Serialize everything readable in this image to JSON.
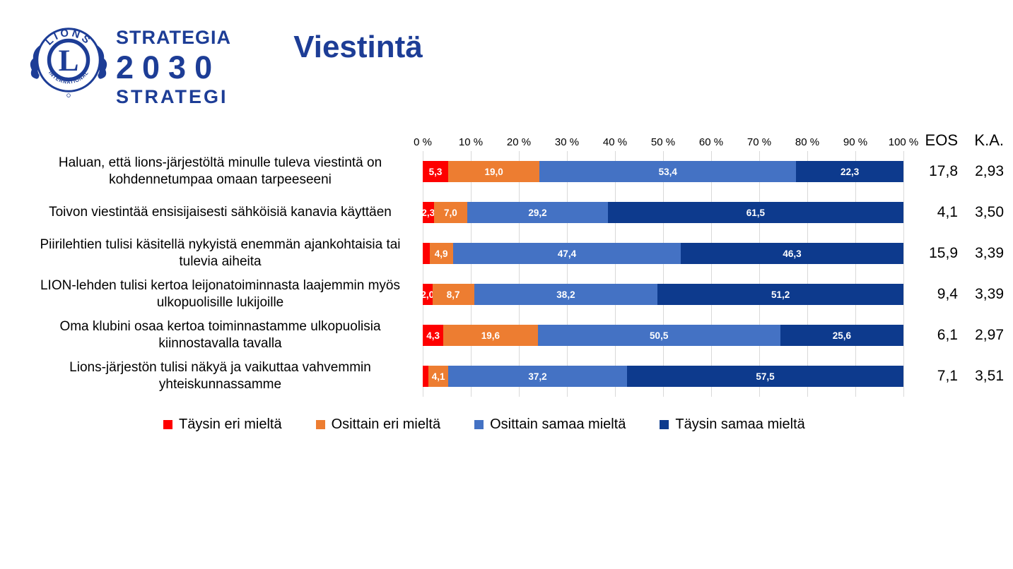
{
  "header": {
    "title": "Viestintä",
    "wordmark": {
      "line1": "STRATEGIA",
      "line2": "2030",
      "line3": "STRATEGI"
    },
    "logo": {
      "top_text": "LIONS",
      "bottom_text": "INTERNATIONAL",
      "center_letter": "L"
    },
    "brand_blue": "#1d3d96"
  },
  "chart_data": {
    "type": "stacked-bar-horizontal",
    "title": "Viestintä",
    "x_ticks": [
      "0 %",
      "10 %",
      "20 %",
      "30 %",
      "40 %",
      "50 %",
      "60 %",
      "70 %",
      "80 %",
      "90 %",
      "100 %"
    ],
    "xlim": [
      0,
      100
    ],
    "grid": true,
    "legend_position": "bottom",
    "extra_columns": [
      "EOS",
      "K.A."
    ],
    "series_names": [
      "Täysin eri mieltä",
      "Osittain eri mieltä",
      "Osittain samaa mieltä",
      "Täysin samaa mieltä"
    ],
    "series_keys": [
      "taysin-eri-mielta",
      "osittain-eri-mielta",
      "osittain-samaa-mielta",
      "taysin-samaa-mielta"
    ],
    "series_colors": [
      "#fe0000",
      "#ed7d31",
      "#4472c4",
      "#0d3a8d"
    ],
    "gridline_color": "#d9d9d9",
    "label_min_percent_to_show": 2.0,
    "rows": [
      {
        "label": "Haluan, että lions-järjestöltä minulle tuleva viestintä on kohdennetumpaa omaan tarpeeseeni",
        "values": [
          5.3,
          19.0,
          53.4,
          22.3
        ],
        "eos": "17,8",
        "ka": "2,93"
      },
      {
        "label": "Toivon viestintää ensisijaisesti sähköisiä kanavia käyttäen",
        "values": [
          2.3,
          7.0,
          29.2,
          61.5
        ],
        "eos": "4,1",
        "ka": "3,50"
      },
      {
        "label": "Piirilehtien tulisi käsitellä nykyistä enemmän ajankohtaisia tai tulevia aiheita",
        "values": [
          1.4,
          4.9,
          47.4,
          46.3
        ],
        "eos": "15,9",
        "ka": "3,39"
      },
      {
        "label": "LION-lehden tulisi kertoa leijonatoiminnasta laajemmin myös ulkopuolisille lukijoille",
        "values": [
          2.0,
          8.7,
          38.2,
          51.2
        ],
        "eos": "9,4",
        "ka": "3,39"
      },
      {
        "label": "Oma klubini osaa kertoa toiminnastamme ulkopuolisia kiinnostavalla tavalla",
        "values": [
          4.3,
          19.6,
          50.5,
          25.6
        ],
        "eos": "6,1",
        "ka": "2,97"
      },
      {
        "label": "Lions-järjestön tulisi näkyä ja vaikuttaa vahvemmin yhteiskunnassamme",
        "values": [
          1.2,
          4.1,
          37.2,
          57.5
        ],
        "eos": "7,1",
        "ka": "3,51"
      }
    ]
  }
}
